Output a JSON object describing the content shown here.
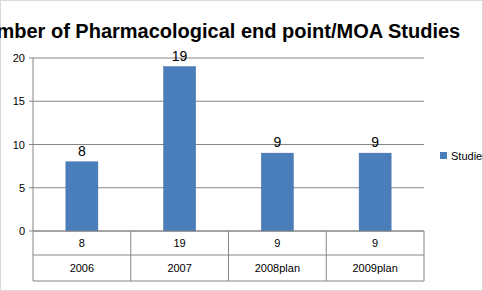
{
  "chart_data": {
    "type": "bar",
    "title": "Number of Pharmacological end point/MOA Studies",
    "categories": [
      "2006",
      "2007",
      "2008plan",
      "2009plan"
    ],
    "series": [
      {
        "name": "Studies",
        "color": "#4a7ebb",
        "values": [
          8,
          19,
          9,
          9
        ]
      }
    ],
    "ylim": [
      0,
      20
    ],
    "yticks": [
      0,
      5,
      10,
      15,
      20
    ],
    "grid": true,
    "legend": "right",
    "data_labels": true
  }
}
